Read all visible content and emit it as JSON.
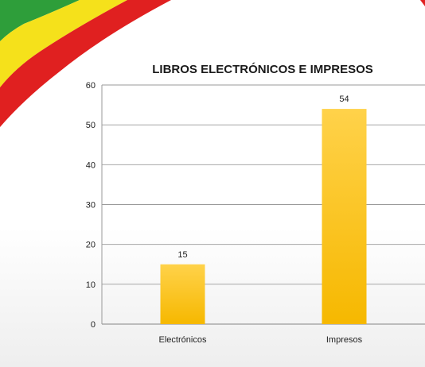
{
  "chart_data": {
    "type": "bar",
    "title": "LIBROS ELECTRÓNICOS E IMPRESOS",
    "categories": [
      "Electrónicos",
      "Impresos"
    ],
    "values": [
      15,
      54
    ],
    "data_labels": [
      "15",
      "54"
    ],
    "ylim": [
      0,
      60
    ],
    "yticks": [
      "0",
      "10",
      "20",
      "30",
      "40",
      "50",
      "60"
    ],
    "grid": true,
    "legend": "none",
    "bar_color_top": "#ffd24a",
    "bar_color_bottom": "#f6b800",
    "grid_color": "#9a9a9a"
  },
  "decoration": {
    "flag_colors": [
      "#2e9e3a",
      "#f5e11b",
      "#e02020"
    ]
  }
}
